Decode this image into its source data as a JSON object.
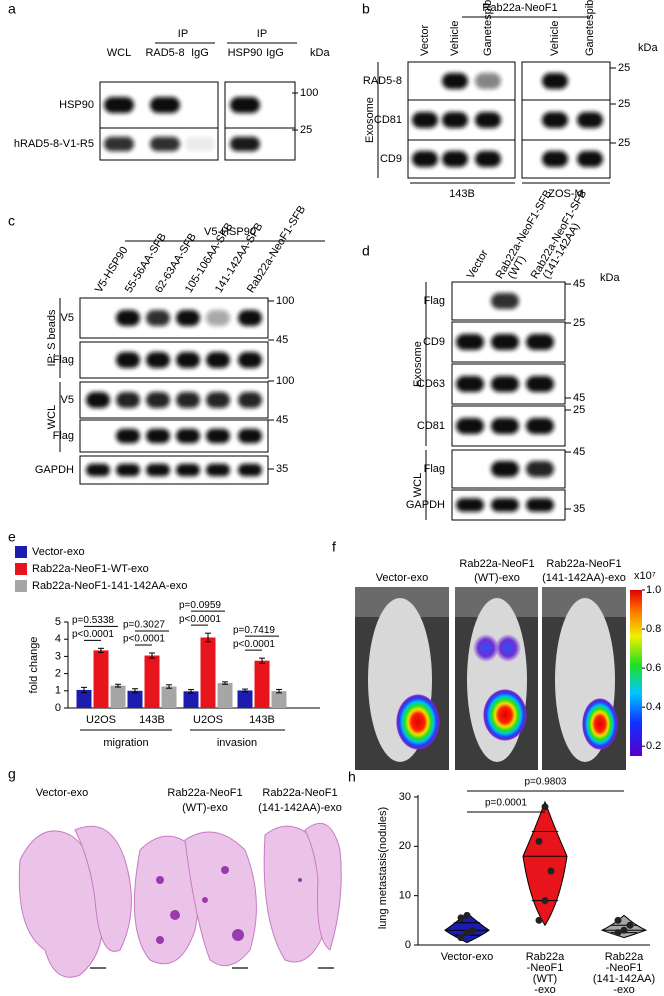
{
  "panels": {
    "a": {
      "label": "a",
      "headers": [
        "IP",
        "IP"
      ],
      "lanes": [
        "WCL",
        "RAD5-8",
        "IgG",
        "HSP90",
        "IgG"
      ],
      "unit": "kDa",
      "rows": [
        "HSP90",
        "hRAD5-8-V1-R5"
      ],
      "markers": [
        "100",
        "25"
      ]
    },
    "b": {
      "label": "b",
      "header": "Rab22a-NeoF1",
      "lanes": [
        "Vector",
        "Vehicle",
        "Ganetespib",
        "Vehicle",
        "Ganetespib"
      ],
      "unit": "kDa",
      "groups": [
        "Exosome"
      ],
      "rows": [
        "RAD5-8",
        "CD81",
        "CD9"
      ],
      "markers": [
        "25",
        "25",
        "25"
      ],
      "cell_lines": [
        "143B",
        "ZOS-M"
      ]
    },
    "c": {
      "label": "c",
      "header": "V5-HSP90",
      "lanes": [
        "V5-HSP90",
        "55-56AA-SFB",
        "62-63AA-SFB",
        "105-106AA-SFB",
        "141-142AA-SFB",
        "Rab22a-NeoF1-SFB"
      ],
      "groups": [
        "IP: S beads",
        "WCL"
      ],
      "rows": [
        "V5",
        "Flag",
        "V5",
        "Flag",
        "GAPDH"
      ],
      "markers": [
        "100",
        "45",
        "100",
        "45",
        "35"
      ]
    },
    "d": {
      "label": "d",
      "lanes": [
        [
          "Vector"
        ],
        [
          "Rab22a-NeoF1-SFB",
          "(WT)"
        ],
        [
          "Rab22a-NeoF1-SFB",
          "(141-142AA)"
        ]
      ],
      "unit": "kDa",
      "groups": [
        "Exosome",
        "WCL"
      ],
      "rows": [
        "Flag",
        "CD9",
        "CD63",
        "CD81",
        "Flag",
        "GAPDH"
      ],
      "markers": [
        "45",
        "25",
        "45",
        "25",
        "45",
        "35"
      ]
    },
    "e": {
      "label": "e",
      "type": "bar",
      "y_label": "fold change",
      "categories": [
        "U2OS",
        "143B",
        "U2OS",
        "143B"
      ],
      "groups": [
        "migration",
        "invasion"
      ],
      "series": [
        {
          "name": "Vector-exo",
          "color": "#1c1cb0",
          "values": [
            1.05,
            1.0,
            0.97,
            1.02
          ],
          "errors": [
            0.15,
            0.12,
            0.1,
            0.08
          ]
        },
        {
          "name": "Rab22a-NeoF1-WT-exo",
          "color": "#e8141b",
          "values": [
            3.35,
            3.05,
            4.1,
            2.75
          ],
          "errors": [
            0.12,
            0.15,
            0.25,
            0.15
          ]
        },
        {
          "name": "Rab22a-NeoF1-141-142AA-exo",
          "color": "#a6a6a6",
          "values": [
            1.3,
            1.25,
            1.45,
            0.98
          ],
          "errors": [
            0.08,
            0.1,
            0.07,
            0.1
          ]
        }
      ],
      "ylim": [
        0,
        5
      ],
      "yticks": [
        0,
        1,
        2,
        3,
        4,
        5
      ],
      "annotations": [
        [
          "p=0.5338",
          "p<0.0001"
        ],
        [
          "p=0.3027",
          "p<0.0001"
        ],
        [
          "p=0.0959",
          "p<0.0001"
        ],
        [
          "p=0.7419",
          "p<0.0001"
        ]
      ]
    },
    "f": {
      "label": "f",
      "captions": [
        [
          "Vector-exo"
        ],
        [
          "Rab22a-NeoF1",
          "(WT)-exo"
        ],
        [
          "Rab22a-NeoF1",
          "(141-142AA)-exo"
        ]
      ],
      "colorbar": {
        "unit": "x10⁷",
        "lim": [
          0.15,
          1.0
        ],
        "ticks": [
          0.2,
          0.4,
          0.6,
          0.8,
          {
            "value": 1.0,
            "label": "1.0"
          }
        ]
      }
    },
    "g": {
      "label": "g",
      "captions": [
        [
          "Vector-exo"
        ],
        [
          "Rab22a-NeoF1",
          "(WT)-exo"
        ],
        [
          "Rab22a-NeoF1",
          "(141-142AA)-exo"
        ]
      ]
    },
    "h": {
      "label": "h",
      "type": "violin",
      "y_label": "lung metastasis(nodules)",
      "categories": [
        [
          "Vector-exo"
        ],
        [
          "Rab22a",
          "-NeoF1",
          "(WT)",
          "-exo"
        ],
        [
          "Rab22a",
          "-NeoF1",
          "(141-142AA)",
          "-exo"
        ]
      ],
      "colors": [
        "#1c1cb0",
        "#e8141b",
        "#a6a6a6"
      ],
      "stats": [
        {
          "min": 0.5,
          "q1": 2,
          "median": 3,
          "q3": 4.5,
          "max": 6.5
        },
        {
          "min": 4,
          "q1": 9,
          "median": 18,
          "q3": 23,
          "max": 29
        },
        {
          "min": 1.5,
          "q1": 2.5,
          "median": 3,
          "q3": 4,
          "max": 6
        }
      ],
      "points": [
        [
          1.5,
          2.5,
          3,
          5.5,
          6
        ],
        [
          5,
          9,
          15,
          21,
          28
        ],
        [
          2.5,
          3,
          4,
          5
        ]
      ],
      "ylim": [
        0,
        30
      ],
      "yticks": [
        0,
        10,
        20,
        30
      ],
      "annotations": [
        "p=0.0001",
        "p=0.9803"
      ]
    }
  }
}
